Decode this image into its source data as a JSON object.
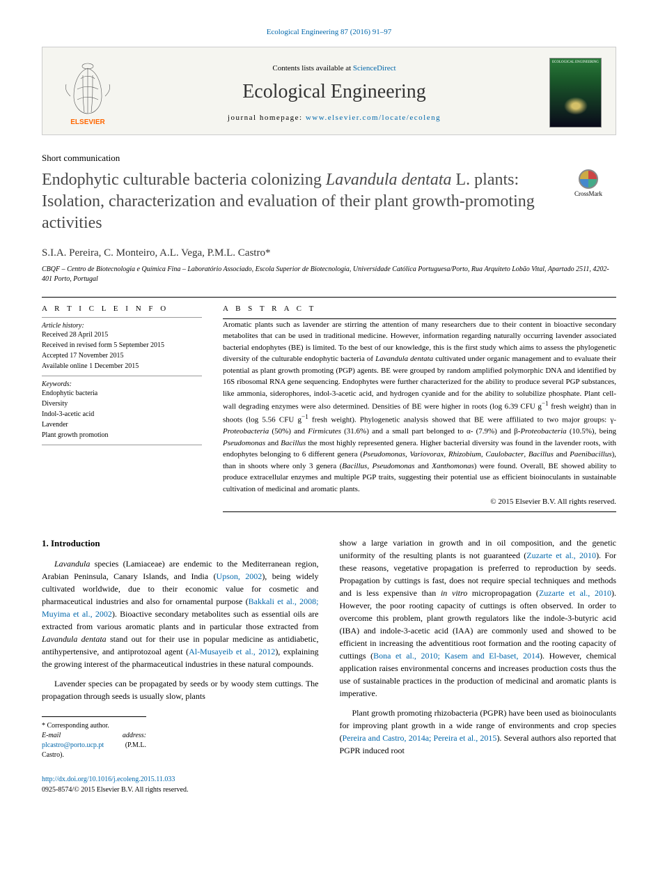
{
  "top_reference": "Ecological Engineering 87 (2016) 91–97",
  "header": {
    "contents_prefix": "Contents lists available at ",
    "contents_link": "ScienceDirect",
    "journal": "Ecological Engineering",
    "homepage_prefix": "journal homepage: ",
    "homepage_url": "www.elsevier.com/locate/ecoleng",
    "cover_label": "ECOLOGICAL ENGINEERING"
  },
  "article_type": "Short communication",
  "title_html": "Endophytic culturable bacteria colonizing <em>Lavandula dentata</em> L. plants: Isolation, characterization and evaluation of their plant growth-promoting activities",
  "crossmark": "CrossMark",
  "authors": "S.I.A. Pereira, C. Monteiro, A.L. Vega, P.M.L. Castro*",
  "affiliation": "CBQF – Centro de Biotecnologia e Química Fina – Laboratório Associado, Escola Superior de Biotecnologia, Universidade Católica Portuguesa/Porto, Rua Arquiteto Lobão Vital, Apartado 2511, 4202-401 Porto, Portugal",
  "info": {
    "heading": "A R T I C L E   I N F O",
    "history_label": "Article history:",
    "history": [
      "Received 28 April 2015",
      "Received in revised form 5 September 2015",
      "Accepted 17 November 2015",
      "Available online 1 December 2015"
    ],
    "keywords_label": "Keywords:",
    "keywords": [
      "Endophytic bacteria",
      "Diversity",
      "Indol-3-acetic acid",
      "Lavender",
      "Plant growth promotion"
    ]
  },
  "abstract": {
    "heading": "A B S T R A C T",
    "text_html": "Aromatic plants such as lavender are stirring the attention of many researchers due to their content in bioactive secondary metabolites that can be used in traditional medicine. However, information regarding naturally occurring lavender associated bacterial endophytes (BE) is limited. To the best of our knowledge, this is the first study which aims to assess the phylogenetic diversity of the culturable endophytic bacteria of <em>Lavandula dentata</em> cultivated under organic management and to evaluate their potential as plant growth promoting (PGP) agents. BE were grouped by random amplified polymorphic DNA and identified by 16S ribosomal RNA gene sequencing. Endophytes were further characterized for the ability to produce several PGP substances, like ammonia, siderophores, indol-3-acetic acid, and hydrogen cyanide and for the ability to solubilize phosphate. Plant cell-wall degrading enzymes were also determined. Densities of BE were higher in roots (log 6.39 CFU g<sup>−1</sup> fresh weight) than in shoots (log 5.56 CFU g<sup>−1</sup> fresh weight). Phylogenetic analysis showed that BE were affiliated to two major groups: γ-<em>Proteobacteria</em> (50%) and <em>Firmicutes</em> (31.6%) and a small part belonged to α- (7.9%) and β-<em>Proteobacteria</em> (10.5%), being <em>Pseudomonas</em> and <em>Bacillus</em> the most highly represented genera. Higher bacterial diversity was found in the lavender roots, with endophytes belonging to 6 different genera (<em>Pseudomonas</em>, <em>Variovorax</em>, <em>Rhizobium</em>, <em>Caulobacter</em>, <em>Bacillus</em> and <em>Paenibacillus</em>), than in shoots where only 3 genera (<em>Bacillus</em>, <em>Pseudomonas</em> and <em>Xanthomonas</em>) were found. Overall, BE showed ability to produce extracellular enzymes and multiple PGP traits, suggesting their potential use as efficient bioinoculants in sustainable cultivation of medicinal and aromatic plants.",
    "copyright": "© 2015 Elsevier B.V. All rights reserved."
  },
  "section_heading": "1. Introduction",
  "col1": {
    "p1_html": "<em>Lavandula</em> species (Lamiaceae) are endemic to the Mediterranean region, Arabian Peninsula, Canary Islands, and India (<a href='#'>Upson, 2002</a>), being widely cultivated worldwide, due to their economic value for cosmetic and pharmaceutical industries and also for ornamental purpose (<a href='#'>Bakkali et al., 2008; Muyima et al., 2002</a>). Bioactive secondary metabolites such as essential oils are extracted from various aromatic plants and in particular those extracted from <em>Lavandula dentata</em> stand out for their use in popular medicine as antidiabetic, antihypertensive, and antiprotozoal agent (<a href='#'>Al-Musayeib et al., 2012</a>), explaining the growing interest of the pharmaceutical industries in these natural compounds.",
    "p2_html": "Lavender species can be propagated by seeds or by woody stem cuttings. The propagation through seeds is usually slow, plants"
  },
  "col2": {
    "p1_html": "show a large variation in growth and in oil composition, and the genetic uniformity of the resulting plants is not guaranteed (<a href='#'>Zuzarte et al., 2010</a>). For these reasons, vegetative propagation is preferred to reproduction by seeds. Propagation by cuttings is fast, does not require special techniques and methods and is less expensive than <em>in vitro</em> micropropagation (<a href='#'>Zuzarte et al., 2010</a>). However, the poor rooting capacity of cuttings is often observed. In order to overcome this problem, plant growth regulators like the indole-3-butyric acid (IBA) and indole-3-acetic acid (IAA) are commonly used and showed to be efficient in increasing the adventitious root formation and the rooting capacity of cuttings (<a href='#'>Bona et al., 2010; Kasem and El-baset, 2014</a>). However, chemical application raises environmental concerns and increases production costs thus the use of sustainable practices in the production of medicinal and aromatic plants is imperative.",
    "p2_html": "Plant growth promoting rhizobacteria (PGPR) have been used as bioinoculants for improving plant growth in a wide range of environments and crop species (<a href='#'>Pereira and Castro, 2014a; Pereira et al., 2015</a>). Several authors also reported that PGPR induced root"
  },
  "footnote": {
    "corr": "* Corresponding author.",
    "email_label": "E-mail address:",
    "email": "plcastro@porto.ucp.pt",
    "email_name": "(P.M.L. Castro)."
  },
  "bottom": {
    "doi": "http://dx.doi.org/10.1016/j.ecoleng.2015.11.033",
    "issn": "0925-8574/© 2015 Elsevier B.V. All rights reserved."
  },
  "colors": {
    "link": "#0066aa",
    "text": "#000000",
    "header_bg": "#f5f5f0",
    "title_gray": "#4a4a4a"
  }
}
